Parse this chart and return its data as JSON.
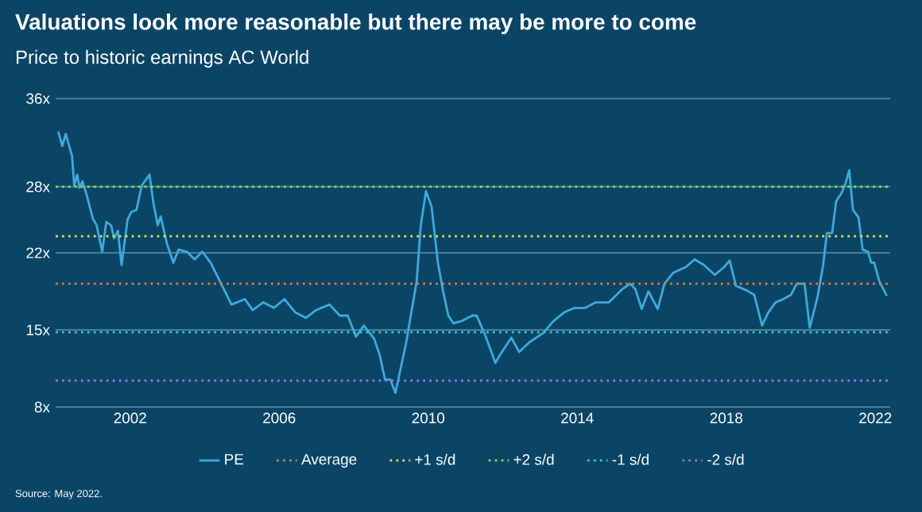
{
  "chart_data": {
    "type": "line",
    "title": "Valuations look more reasonable but there may be more to come",
    "subtitle": "Price to historic earnings AC World",
    "x": [
      2000.07,
      2000.18,
      2000.27,
      2000.44,
      2000.5,
      2000.58,
      2000.64,
      2000.72,
      2000.82,
      2001.0,
      2001.1,
      2001.25,
      2001.36,
      2001.49,
      2001.57,
      2001.67,
      2001.77,
      2001.93,
      2002.03,
      2002.17,
      2002.31,
      2002.52,
      2002.62,
      2002.74,
      2002.82,
      2002.99,
      2003.16,
      2003.3,
      2003.52,
      2003.73,
      2003.94,
      2004.16,
      2004.44,
      2004.72,
      2005.08,
      2005.29,
      2005.57,
      2005.86,
      2006.14,
      2006.43,
      2006.71,
      2006.99,
      2007.35,
      2007.63,
      2007.84,
      2008.06,
      2008.27,
      2008.55,
      2008.7,
      2008.84,
      2008.98,
      2009.12,
      2009.4,
      2009.69,
      2009.8,
      2009.94,
      2010.09,
      2010.26,
      2010.4,
      2010.54,
      2010.68,
      2010.89,
      2011.18,
      2011.3,
      2011.52,
      2011.73,
      2011.8,
      2011.94,
      2012.23,
      2012.44,
      2012.72,
      2013.08,
      2013.36,
      2013.65,
      2013.93,
      2014.21,
      2014.5,
      2014.85,
      2015.21,
      2015.42,
      2015.56,
      2015.73,
      2015.91,
      2016.16,
      2016.34,
      2016.58,
      2016.91,
      2017.15,
      2017.4,
      2017.69,
      2017.94,
      2018.09,
      2018.26,
      2018.54,
      2018.75,
      2018.96,
      2019.13,
      2019.32,
      2019.53,
      2019.74,
      2019.89,
      2020.1,
      2020.24,
      2020.45,
      2020.6,
      2020.7,
      2020.84,
      2020.95,
      2021.09,
      2021.2,
      2021.3,
      2021.4,
      2021.55,
      2021.66,
      2021.8,
      2021.89,
      2021.97,
      2022.11,
      2022.31
    ],
    "series": [
      {
        "name": "PE",
        "color": "#3fa9dc",
        "values": [
          33.0,
          31.7,
          32.8,
          30.8,
          28.1,
          29.1,
          27.9,
          28.5,
          27.4,
          25.1,
          24.5,
          22.1,
          24.8,
          24.5,
          23.3,
          24.0,
          20.9,
          25.0,
          25.7,
          25.9,
          28.1,
          29.1,
          26.6,
          24.5,
          25.3,
          22.8,
          21.1,
          22.3,
          22.1,
          21.4,
          22.1,
          21.1,
          19.2,
          17.3,
          17.8,
          16.8,
          17.5,
          17.0,
          17.8,
          16.6,
          16.1,
          16.8,
          17.3,
          16.3,
          16.3,
          14.4,
          15.4,
          14.2,
          12.7,
          10.5,
          10.5,
          9.3,
          13.7,
          19.4,
          24.5,
          27.6,
          26.2,
          21.1,
          18.5,
          16.3,
          15.6,
          15.8,
          16.3,
          16.3,
          14.6,
          12.7,
          12.0,
          12.8,
          14.3,
          13.0,
          13.9,
          14.7,
          15.8,
          16.6,
          17.0,
          17.0,
          17.5,
          17.5,
          18.7,
          19.2,
          18.7,
          16.9,
          18.5,
          16.9,
          19.2,
          20.2,
          20.7,
          21.4,
          20.9,
          20.0,
          20.7,
          21.3,
          19.0,
          18.6,
          18.2,
          15.4,
          16.6,
          17.5,
          17.8,
          18.2,
          19.2,
          19.2,
          15.2,
          18.0,
          20.9,
          23.8,
          23.8,
          26.7,
          27.4,
          28.3,
          29.5,
          25.9,
          25.2,
          22.3,
          22.1,
          21.1,
          21.1,
          19.4,
          18.1
        ]
      }
    ],
    "ref_lines": [
      {
        "axis": "y",
        "value": 19.2,
        "label": "Average",
        "color": "#e07b39",
        "line_style": "dotted"
      },
      {
        "axis": "y",
        "value": 23.5,
        "label": "+1 s/d",
        "color": "#e8e23a",
        "line_style": "dotted"
      },
      {
        "axis": "y",
        "value": 28.0,
        "label": "+2 s/d",
        "color": "#8fe04a",
        "line_style": "dotted"
      },
      {
        "axis": "y",
        "value": 14.8,
        "label": "-1 s/d",
        "color": "#3cc8d0",
        "line_style": "dotted"
      },
      {
        "axis": "y",
        "value": 10.4,
        "label": "-2 s/d",
        "color": "#9a6ee0",
        "line_style": "dotted"
      }
    ],
    "xlim": [
      2000.0,
      2022.4
    ],
    "ylim": [
      8,
      36
    ],
    "xticks": [
      2002,
      2006,
      2010,
      2014,
      2018,
      2022
    ],
    "yticks": [
      {
        "value": 8,
        "label": "8x"
      },
      {
        "value": 15,
        "label": "15x"
      },
      {
        "value": 22,
        "label": "22x"
      },
      {
        "value": 28,
        "label": "28x"
      },
      {
        "value": 36,
        "label": "36x"
      }
    ],
    "grid": "y",
    "legend": "bottom",
    "annotations": [
      "Source: May 2022."
    ]
  }
}
